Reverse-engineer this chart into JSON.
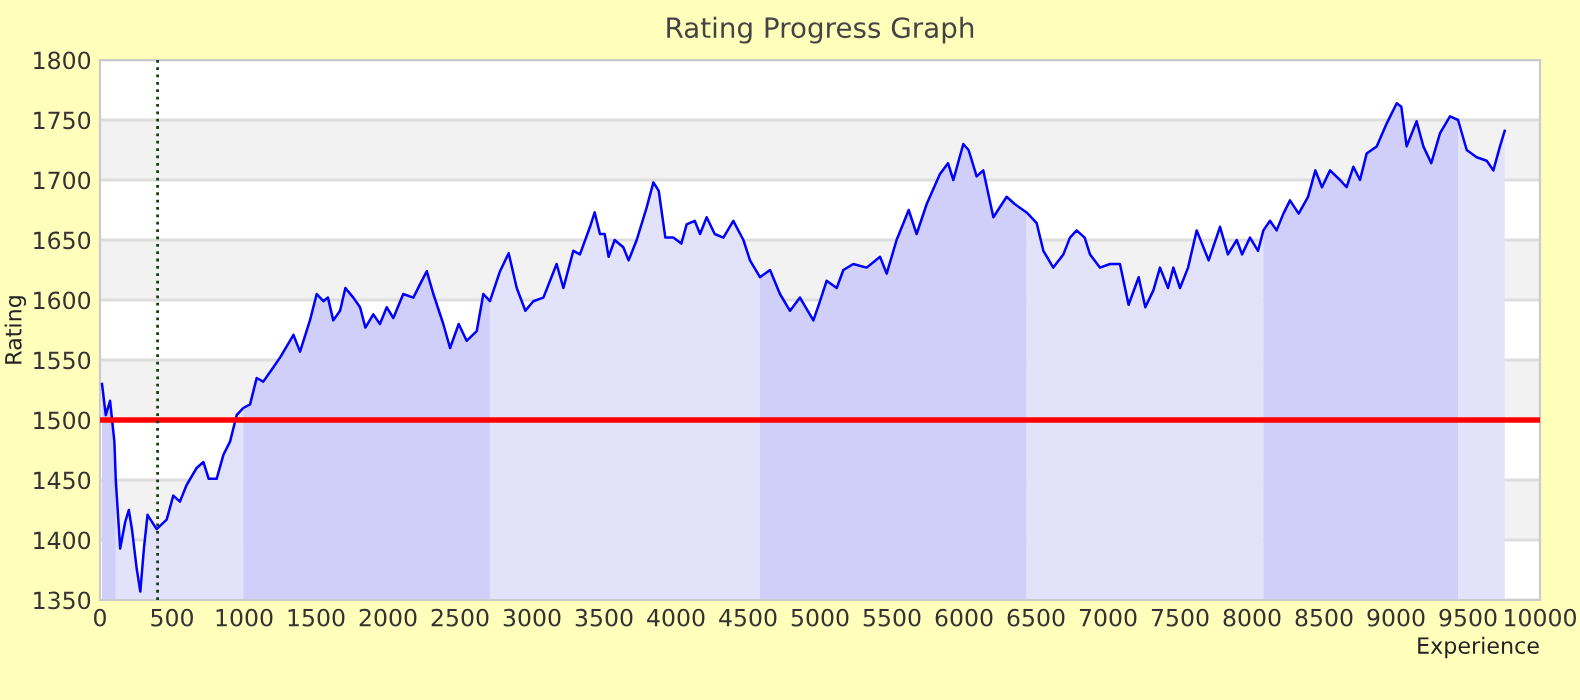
{
  "chart_data": {
    "type": "area",
    "title": "Rating Progress Graph",
    "xlabel": "Experience",
    "ylabel": "Rating",
    "xlim": [
      0,
      10000
    ],
    "xticks": [
      0,
      500,
      1000,
      1500,
      2000,
      2500,
      3000,
      3500,
      4000,
      4500,
      5000,
      5500,
      6000,
      6500,
      7000,
      7500,
      8000,
      8500,
      9000,
      9500,
      10000
    ],
    "ylim": [
      1350,
      1800
    ],
    "yticks": [
      1350,
      1400,
      1450,
      1500,
      1550,
      1600,
      1650,
      1700,
      1750,
      1800
    ],
    "grid": "y",
    "legend": false,
    "ref_lines": [
      {
        "axis": "y",
        "value": 1500,
        "color": "#ff0000",
        "line_style": "solid"
      },
      {
        "axis": "x",
        "value": 400,
        "color": "#1a3a1a",
        "line_style": "dotted"
      }
    ],
    "series": [
      {
        "color": "#cfcff9",
        "x": [
          14,
          40,
          70,
          100,
          110
        ],
        "values": [
          1530,
          1504,
          1516,
          1482,
          1449
        ]
      },
      {
        "color": "#e2e2fb",
        "x": [
          110,
          140,
          175,
          200,
          222,
          255,
          280,
          305,
          330,
          393,
          463,
          509,
          555,
          602,
          671,
          718,
          755,
          810,
          857,
          903,
          949,
          995
        ],
        "values": [
          1449,
          1393,
          1415,
          1425,
          1409,
          1376,
          1357,
          1393,
          1421,
          1409,
          1417,
          1437,
          1432,
          1446,
          1460,
          1465,
          1451,
          1451,
          1471,
          1482,
          1504,
          1510
        ]
      },
      {
        "color": "#cfcff9",
        "x": [
          995,
          1042,
          1088,
          1134,
          1204,
          1250,
          1319,
          1343,
          1389,
          1458,
          1505,
          1551,
          1583,
          1620,
          1667,
          1704,
          1759,
          1806,
          1843,
          1898,
          1944,
          1991,
          2037,
          2106,
          2176,
          2222,
          2269,
          2315,
          2384,
          2431,
          2491,
          2546,
          2616,
          2662,
          2708
        ],
        "values": [
          1510,
          1513,
          1535,
          1532,
          1544,
          1552,
          1566,
          1571,
          1557,
          1583,
          1605,
          1599,
          1602,
          1583,
          1591,
          1610,
          1602,
          1594,
          1577,
          1588,
          1580,
          1594,
          1585,
          1605,
          1602,
          1613,
          1624,
          1605,
          1580,
          1560,
          1580,
          1566,
          1574,
          1605,
          1599
        ]
      },
      {
        "color": "#e2e2fb",
        "x": [
          2708,
          2778,
          2838,
          2894,
          2954,
          3009,
          3079,
          3171,
          3218,
          3287,
          3333,
          3403,
          3435,
          3472,
          3505,
          3532,
          3574,
          3634,
          3671,
          3727,
          3796,
          3843,
          3880,
          3926,
          3981,
          4037,
          4074,
          4130,
          4167,
          4213,
          4269,
          4329,
          4398,
          4468,
          4514,
          4583
        ],
        "values": [
          1599,
          1624,
          1639,
          1610,
          1591,
          1599,
          1602,
          1630,
          1610,
          1641,
          1638,
          1661,
          1673,
          1655,
          1655,
          1636,
          1650,
          1644,
          1633,
          1650,
          1677,
          1698,
          1691,
          1652,
          1652,
          1647,
          1663,
          1666,
          1655,
          1669,
          1655,
          1652,
          1666,
          1650,
          1633,
          1619
        ]
      },
      {
        "color": "#cfcff9",
        "x": [
          4583,
          4653,
          4722,
          4792,
          4861,
          4954,
          5000,
          5046,
          5116,
          5162,
          5231,
          5324,
          5417,
          5463,
          5532,
          5616,
          5671,
          5741,
          5833,
          5889,
          5926,
          5995,
          6032,
          6088,
          6134,
          6204,
          6296,
          6352,
          6435
        ],
        "values": [
          1619,
          1625,
          1605,
          1591,
          1602,
          1583,
          1599,
          1616,
          1610,
          1625,
          1630,
          1627,
          1636,
          1622,
          1650,
          1675,
          1655,
          1680,
          1705,
          1714,
          1700,
          1730,
          1725,
          1703,
          1708,
          1669,
          1686,
          1680,
          1673
        ]
      },
      {
        "color": "#e2e2fb",
        "x": [
          6435,
          6505,
          6551,
          6620,
          6690,
          6736,
          6782,
          6838,
          6875,
          6944,
          7014,
          7083,
          7143,
          7213,
          7259,
          7315,
          7361,
          7417,
          7454,
          7500,
          7556,
          7616,
          7699,
          7778,
          7833,
          7894,
          7931,
          7986,
          8042,
          8079
        ],
        "values": [
          1673,
          1664,
          1641,
          1627,
          1638,
          1652,
          1658,
          1652,
          1638,
          1627,
          1630,
          1630,
          1596,
          1619,
          1594,
          1608,
          1627,
          1610,
          1627,
          1610,
          1627,
          1658,
          1633,
          1661,
          1638,
          1650,
          1638,
          1652,
          1641,
          1658
        ]
      },
      {
        "color": "#cfcff9",
        "x": [
          8079,
          8125,
          8171,
          8218,
          8264,
          8324,
          8389,
          8440,
          8486,
          8542,
          8611,
          8657,
          8704,
          8750,
          8796,
          8866,
          8935,
          9005,
          9037,
          9074,
          9143,
          9190,
          9245,
          9306,
          9375,
          9431
        ],
        "values": [
          1658,
          1666,
          1658,
          1672,
          1683,
          1672,
          1686,
          1708,
          1694,
          1708,
          1700,
          1694,
          1711,
          1700,
          1722,
          1728,
          1747,
          1764,
          1761,
          1728,
          1749,
          1728,
          1714,
          1739,
          1753,
          1750
        ]
      },
      {
        "color": "#e2e2fb",
        "x": [
          9431,
          9491,
          9560,
          9630,
          9676,
          9722,
          9755
        ],
        "values": [
          1750,
          1725,
          1719,
          1716,
          1708,
          1728,
          1741
        ]
      },
      {
        "type": "line",
        "color": "#0000ff",
        "x": [
          14,
          40,
          70,
          100,
          110,
          140,
          175,
          200,
          222,
          255,
          280,
          305,
          330,
          393,
          463,
          509,
          555,
          602,
          671,
          718,
          755,
          810,
          857,
          903,
          949,
          995,
          1042,
          1088,
          1134,
          1204,
          1250,
          1319,
          1343,
          1389,
          1458,
          1505,
          1551,
          1583,
          1620,
          1667,
          1704,
          1759,
          1806,
          1843,
          1898,
          1944,
          1991,
          2037,
          2106,
          2176,
          2222,
          2269,
          2315,
          2384,
          2431,
          2491,
          2546,
          2616,
          2662,
          2708,
          2778,
          2838,
          2894,
          2954,
          3009,
          3079,
          3171,
          3218,
          3287,
          3333,
          3403,
          3435,
          3472,
          3505,
          3532,
          3574,
          3634,
          3671,
          3727,
          3796,
          3843,
          3880,
          3926,
          3981,
          4037,
          4074,
          4130,
          4167,
          4213,
          4269,
          4329,
          4398,
          4468,
          4514,
          4583,
          4653,
          4722,
          4792,
          4861,
          4954,
          5000,
          5046,
          5116,
          5162,
          5231,
          5324,
          5417,
          5463,
          5532,
          5616,
          5671,
          5741,
          5833,
          5889,
          5926,
          5995,
          6032,
          6088,
          6134,
          6204,
          6296,
          6352,
          6435,
          6505,
          6551,
          6620,
          6690,
          6736,
          6782,
          6838,
          6875,
          6944,
          7014,
          7083,
          7143,
          7213,
          7259,
          7315,
          7361,
          7417,
          7454,
          7500,
          7556,
          7616,
          7699,
          7778,
          7833,
          7894,
          7931,
          7986,
          8042,
          8079,
          8125,
          8171,
          8218,
          8264,
          8324,
          8389,
          8440,
          8486,
          8542,
          8611,
          8657,
          8704,
          8750,
          8796,
          8866,
          8935,
          9005,
          9037,
          9074,
          9143,
          9190,
          9245,
          9306,
          9375,
          9431,
          9491,
          9560,
          9630,
          9676,
          9722,
          9755
        ],
        "values": [
          1530,
          1504,
          1516,
          1482,
          1449,
          1393,
          1415,
          1425,
          1409,
          1376,
          1357,
          1393,
          1421,
          1409,
          1417,
          1437,
          1432,
          1446,
          1460,
          1465,
          1451,
          1451,
          1471,
          1482,
          1504,
          1510,
          1513,
          1535,
          1532,
          1544,
          1552,
          1566,
          1571,
          1557,
          1583,
          1605,
          1599,
          1602,
          1583,
          1591,
          1610,
          1602,
          1594,
          1577,
          1588,
          1580,
          1594,
          1585,
          1605,
          1602,
          1613,
          1624,
          1605,
          1580,
          1560,
          1580,
          1566,
          1574,
          1605,
          1599,
          1624,
          1639,
          1610,
          1591,
          1599,
          1602,
          1630,
          1610,
          1641,
          1638,
          1661,
          1673,
          1655,
          1655,
          1636,
          1650,
          1644,
          1633,
          1650,
          1677,
          1698,
          1691,
          1652,
          1652,
          1647,
          1663,
          1666,
          1655,
          1669,
          1655,
          1652,
          1666,
          1650,
          1633,
          1619,
          1625,
          1605,
          1591,
          1602,
          1583,
          1599,
          1616,
          1610,
          1625,
          1630,
          1627,
          1636,
          1622,
          1650,
          1675,
          1655,
          1680,
          1705,
          1714,
          1700,
          1730,
          1725,
          1703,
          1708,
          1669,
          1686,
          1680,
          1673,
          1664,
          1641,
          1627,
          1638,
          1652,
          1658,
          1652,
          1638,
          1627,
          1630,
          1630,
          1596,
          1619,
          1594,
          1608,
          1627,
          1610,
          1627,
          1610,
          1627,
          1658,
          1633,
          1661,
          1638,
          1650,
          1638,
          1652,
          1641,
          1658,
          1666,
          1658,
          1672,
          1683,
          1672,
          1686,
          1708,
          1694,
          1708,
          1700,
          1694,
          1711,
          1700,
          1722,
          1728,
          1747,
          1764,
          1761,
          1728,
          1749,
          1728,
          1714,
          1739,
          1753,
          1750,
          1725,
          1719,
          1716,
          1708,
          1728,
          1741
        ]
      }
    ]
  }
}
